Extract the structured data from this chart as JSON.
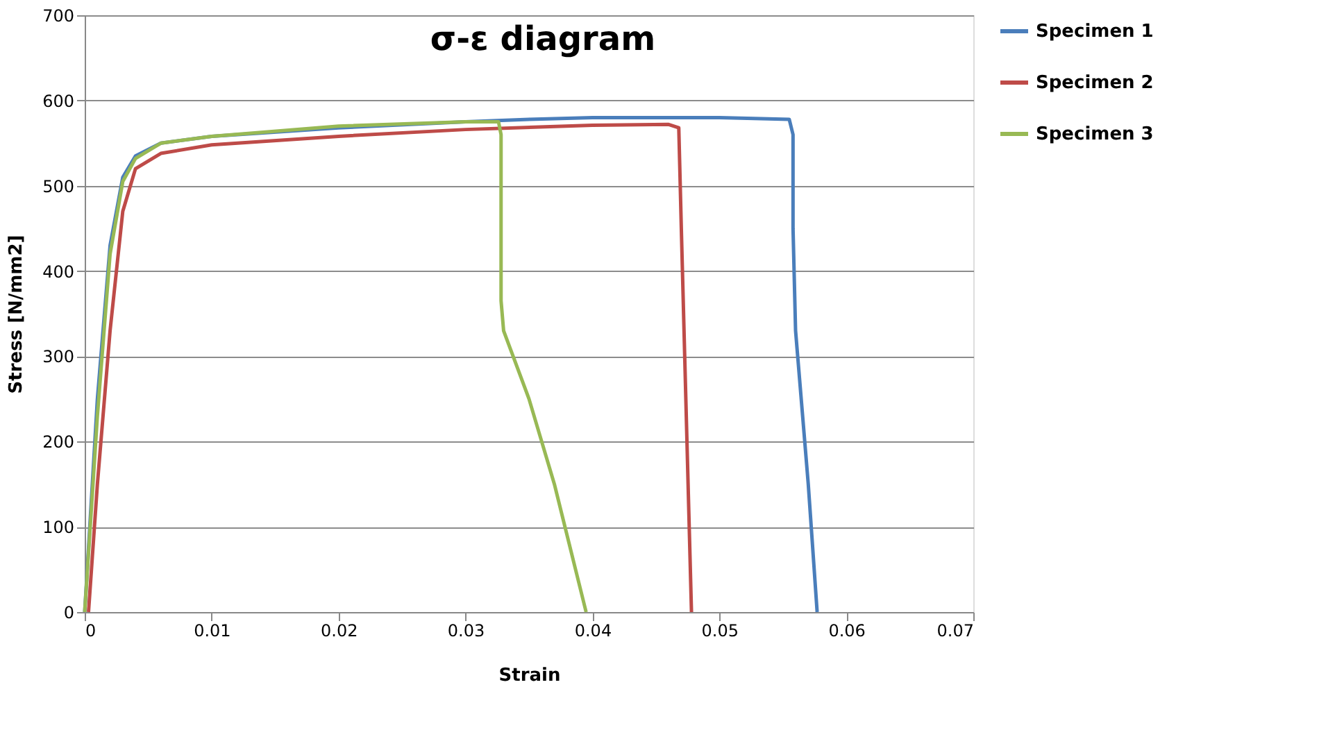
{
  "chart_data": {
    "type": "line",
    "title": "σ-ε diagram",
    "xlabel": "Strain",
    "ylabel": "Stress [N/mm2]",
    "xlim": [
      0,
      0.07
    ],
    "xticks": [
      0,
      0.01,
      0.02,
      0.03,
      0.04,
      0.05,
      0.06,
      0.07
    ],
    "ylim": [
      0,
      700
    ],
    "yticks": [
      0,
      100,
      200,
      300,
      400,
      500,
      600,
      700
    ],
    "grid": "y",
    "legend": "right",
    "marker": "none",
    "line_style": "solid",
    "series": [
      {
        "name": "Specimen 1",
        "color": "#4a7ebb",
        "x": [
          0,
          0.001,
          0.002,
          0.003,
          0.004,
          0.006,
          0.01,
          0.02,
          0.03,
          0.035,
          0.04,
          0.05,
          0.0555,
          0.0558,
          0.0558,
          0.056,
          0.057,
          0.0577
        ],
        "values": [
          0,
          250,
          430,
          510,
          535,
          550,
          558,
          568,
          575,
          578,
          580,
          580,
          578,
          560,
          450,
          330,
          150,
          0
        ]
      },
      {
        "name": "Specimen 2",
        "color": "#be4b48",
        "x": [
          0.0003,
          0.001,
          0.002,
          0.003,
          0.004,
          0.006,
          0.01,
          0.02,
          0.03,
          0.04,
          0.046,
          0.0468,
          0.047,
          0.0478
        ],
        "values": [
          0,
          150,
          330,
          470,
          520,
          538,
          548,
          558,
          566,
          571,
          572,
          568,
          450,
          0
        ]
      },
      {
        "name": "Specimen 3",
        "color": "#98b954",
        "x": [
          0,
          0.001,
          0.002,
          0.003,
          0.004,
          0.006,
          0.01,
          0.02,
          0.03,
          0.0326,
          0.0328,
          0.0328,
          0.033,
          0.035,
          0.037,
          0.0395
        ],
        "values": [
          0,
          230,
          420,
          505,
          532,
          550,
          558,
          570,
          575,
          575,
          560,
          365,
          330,
          250,
          150,
          0
        ]
      }
    ]
  }
}
